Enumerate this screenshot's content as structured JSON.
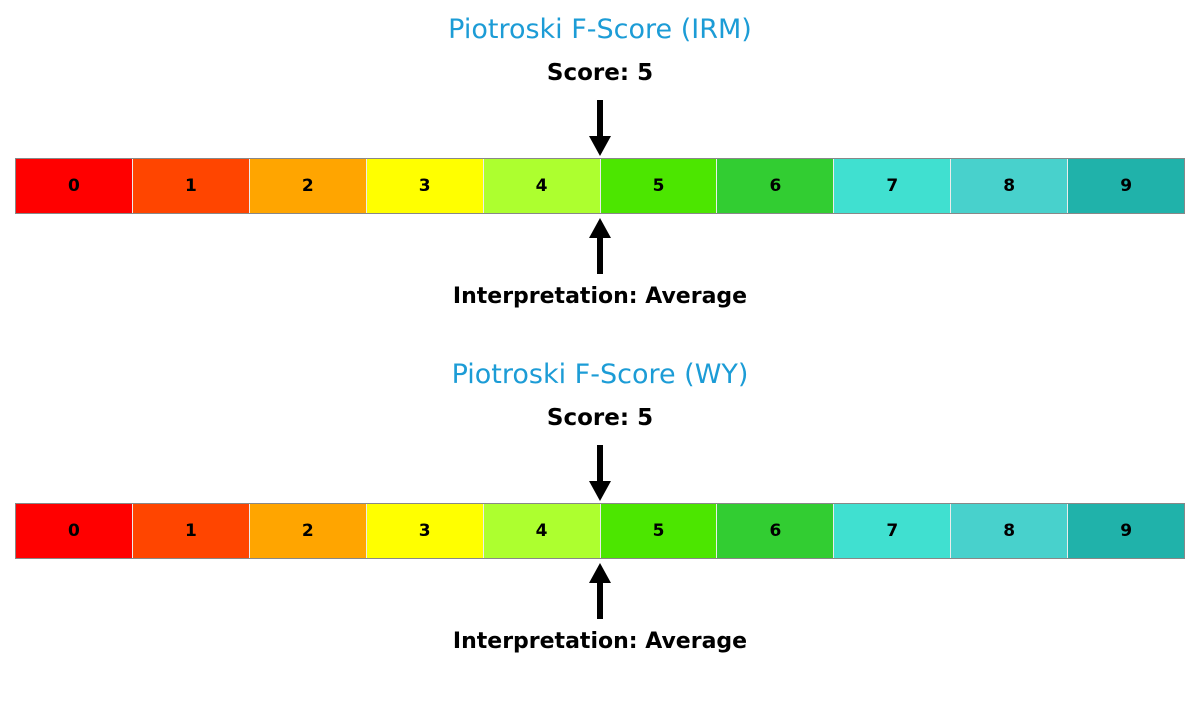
{
  "accent": {
    "title_color": "#1C9CD6",
    "arrow_color": "#000000"
  },
  "charts": [
    {
      "title": "Piotroski F-Score (IRM)",
      "score_label": "Score: 5",
      "score": 5,
      "max": 10,
      "interpretation_label": "Interpretation: Average",
      "cells": [
        {
          "label": "0",
          "color": "#FF0000"
        },
        {
          "label": "1",
          "color": "#FF4500"
        },
        {
          "label": "2",
          "color": "#FFA500"
        },
        {
          "label": "3",
          "color": "#FFFF00"
        },
        {
          "label": "4",
          "color": "#ADFF2F"
        },
        {
          "label": "5",
          "color": "#4CE600"
        },
        {
          "label": "6",
          "color": "#32CD32"
        },
        {
          "label": "7",
          "color": "#40E0D0"
        },
        {
          "label": "8",
          "color": "#48D1CC"
        },
        {
          "label": "9",
          "color": "#20B2AA"
        }
      ]
    },
    {
      "title": "Piotroski F-Score (WY)",
      "score_label": "Score: 5",
      "score": 5,
      "max": 10,
      "interpretation_label": "Interpretation: Average",
      "cells": [
        {
          "label": "0",
          "color": "#FF0000"
        },
        {
          "label": "1",
          "color": "#FF4500"
        },
        {
          "label": "2",
          "color": "#FFA500"
        },
        {
          "label": "3",
          "color": "#FFFF00"
        },
        {
          "label": "4",
          "color": "#ADFF2F"
        },
        {
          "label": "5",
          "color": "#4CE600"
        },
        {
          "label": "6",
          "color": "#32CD32"
        },
        {
          "label": "7",
          "color": "#40E0D0"
        },
        {
          "label": "8",
          "color": "#48D1CC"
        },
        {
          "label": "9",
          "color": "#20B2AA"
        }
      ]
    }
  ],
  "chart_data": [
    {
      "type": "bar",
      "title": "Piotroski F-Score (IRM)",
      "ticker": "IRM",
      "score": 5,
      "interpretation": "Average",
      "categories": [
        "0",
        "1",
        "2",
        "3",
        "4",
        "5",
        "6",
        "7",
        "8",
        "9"
      ],
      "scale_min": 0,
      "scale_max": 9,
      "colors": [
        "#FF0000",
        "#FF4500",
        "#FFA500",
        "#FFFF00",
        "#ADFF2F",
        "#4CE600",
        "#32CD32",
        "#40E0D0",
        "#48D1CC",
        "#20B2AA"
      ],
      "annotations": [
        "Score: 5",
        "Interpretation: Average"
      ],
      "legend": "off",
      "grid": "off"
    },
    {
      "type": "bar",
      "title": "Piotroski F-Score (WY)",
      "ticker": "WY",
      "score": 5,
      "interpretation": "Average",
      "categories": [
        "0",
        "1",
        "2",
        "3",
        "4",
        "5",
        "6",
        "7",
        "8",
        "9"
      ],
      "scale_min": 0,
      "scale_max": 9,
      "colors": [
        "#FF0000",
        "#FF4500",
        "#FFA500",
        "#FFFF00",
        "#ADFF2F",
        "#4CE600",
        "#32CD32",
        "#40E0D0",
        "#48D1CC",
        "#20B2AA"
      ],
      "annotations": [
        "Score: 5",
        "Interpretation: Average"
      ],
      "legend": "off",
      "grid": "off"
    }
  ]
}
